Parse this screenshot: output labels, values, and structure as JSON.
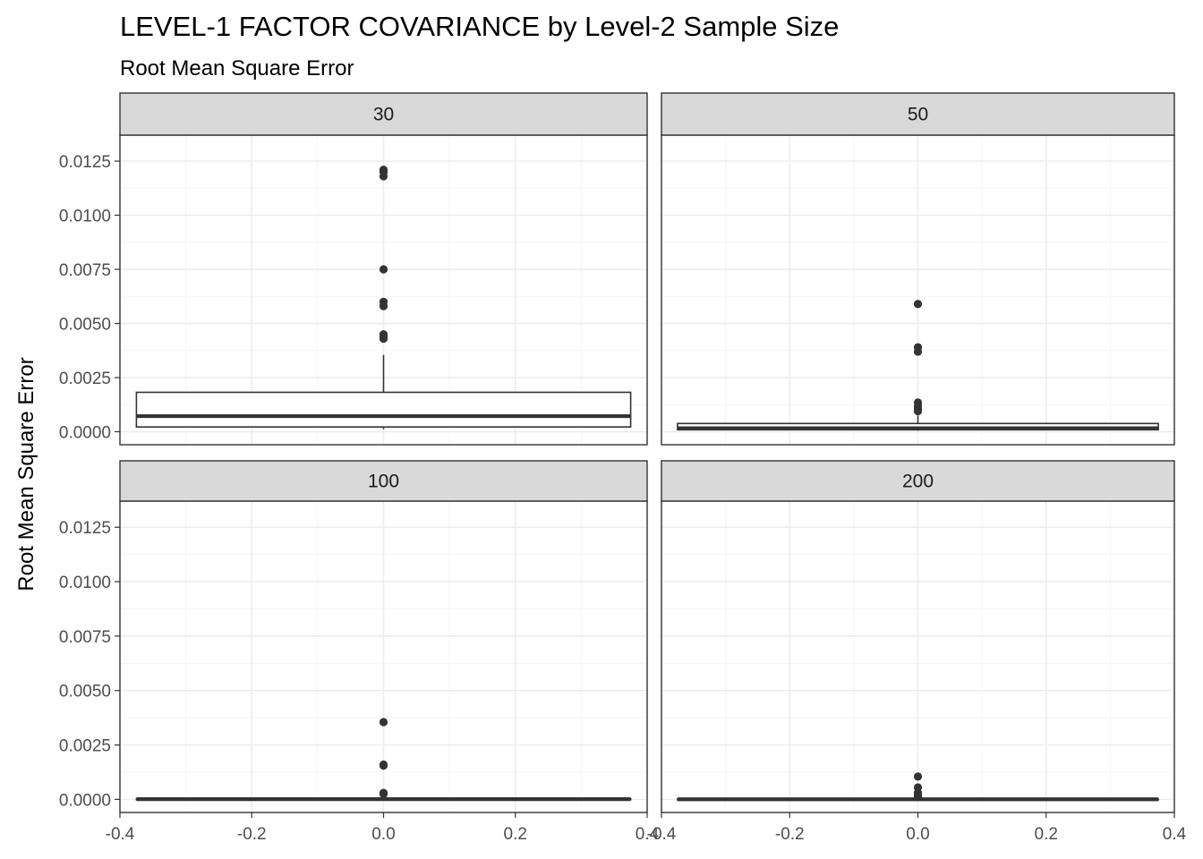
{
  "chart_data": {
    "type": "boxplot",
    "title": "LEVEL-1 FACTOR COVARIANCE by Level-2 Sample Size",
    "subtitle": "Root Mean Square Error",
    "xlabel": "",
    "ylabel": "Root Mean Square Error",
    "xlim": [
      -0.4,
      0.4
    ],
    "ylim": [
      -0.0006,
      0.0137
    ],
    "x_ticks": [
      -0.4,
      -0.2,
      0.0,
      0.2,
      0.4
    ],
    "x_tick_labels": [
      "-0.4",
      "-0.2",
      "0.0",
      "0.2",
      "0.4"
    ],
    "y_ticks": [
      0.0,
      0.0025,
      0.005,
      0.0075,
      0.01,
      0.0125
    ],
    "y_tick_labels": [
      "0.0000",
      "0.0025",
      "0.0050",
      "0.0075",
      "0.0100",
      "0.0125"
    ],
    "box_width": 0.75,
    "grid": true,
    "panels": [
      {
        "label": "30",
        "q1": 0.00022,
        "median": 0.00072,
        "q3": 0.00182,
        "whisker_low": 0.00012,
        "whisker_high": 0.00355,
        "outliers": [
          0.0121,
          0.012,
          0.0118,
          0.0075,
          0.006,
          0.0058,
          0.0045,
          0.0044,
          0.0043
        ]
      },
      {
        "label": "50",
        "q1": 9e-05,
        "median": 0.00016,
        "q3": 0.00038,
        "whisker_low": 5e-05,
        "whisker_high": 0.00075,
        "outliers": [
          0.0059,
          0.0039,
          0.0037,
          0.00135,
          0.0012,
          0.00105,
          0.00095
        ]
      },
      {
        "label": "100",
        "q1": 0.0,
        "median": 1e-05,
        "q3": 3e-05,
        "whisker_low": 0.0,
        "whisker_high": 5e-05,
        "outliers": [
          0.00355,
          0.0016,
          0.00155,
          0.0003,
          0.00025
        ]
      },
      {
        "label": "200",
        "q1": 0.0,
        "median": 5e-06,
        "q3": 2e-05,
        "whisker_low": 0.0,
        "whisker_high": 4e-05,
        "outliers": [
          0.00105,
          0.00055,
          0.0003,
          0.0002,
          0.00012
        ]
      }
    ],
    "colors": {
      "box_line": "#333333",
      "outlier": "#333333",
      "strip_fill": "#d9d9d9",
      "panel_border": "#333333"
    }
  }
}
